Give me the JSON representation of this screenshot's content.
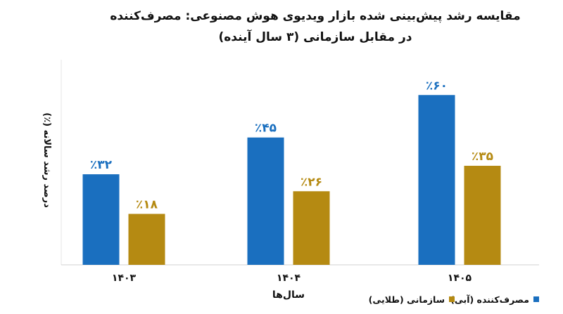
{
  "chart_data": {
    "type": "bar",
    "title": "مقایسه رشد پیش‌بینی شده بازار ویدیوی هوش مصنوعی: مصرف‌کننده",
    "subtitle": "در مقابل سازمانی (۳ سال آینده)",
    "ylabel": "درصد رشد سالانه (٪)",
    "xlabel": "سال‌ها",
    "categories": [
      "۱۴۰۳",
      "۱۴۰۴",
      "۱۴۰۵"
    ],
    "series": [
      {
        "name": "مصرف‌کننده (آبی)",
        "color": "#1a6fbf",
        "values": [
          32,
          45,
          60
        ],
        "labels": [
          "٪۳۲",
          "٪۴۵",
          "٪۶۰"
        ]
      },
      {
        "name": "سازمانی (طلایی)",
        "color": "#b58a12",
        "values": [
          18,
          26,
          35
        ],
        "labels": [
          "٪۱۸",
          "٪۲۶",
          "٪۳۵"
        ]
      }
    ],
    "ylim": [
      0,
      70
    ],
    "grid": false,
    "legend_position": "bottom-right"
  }
}
